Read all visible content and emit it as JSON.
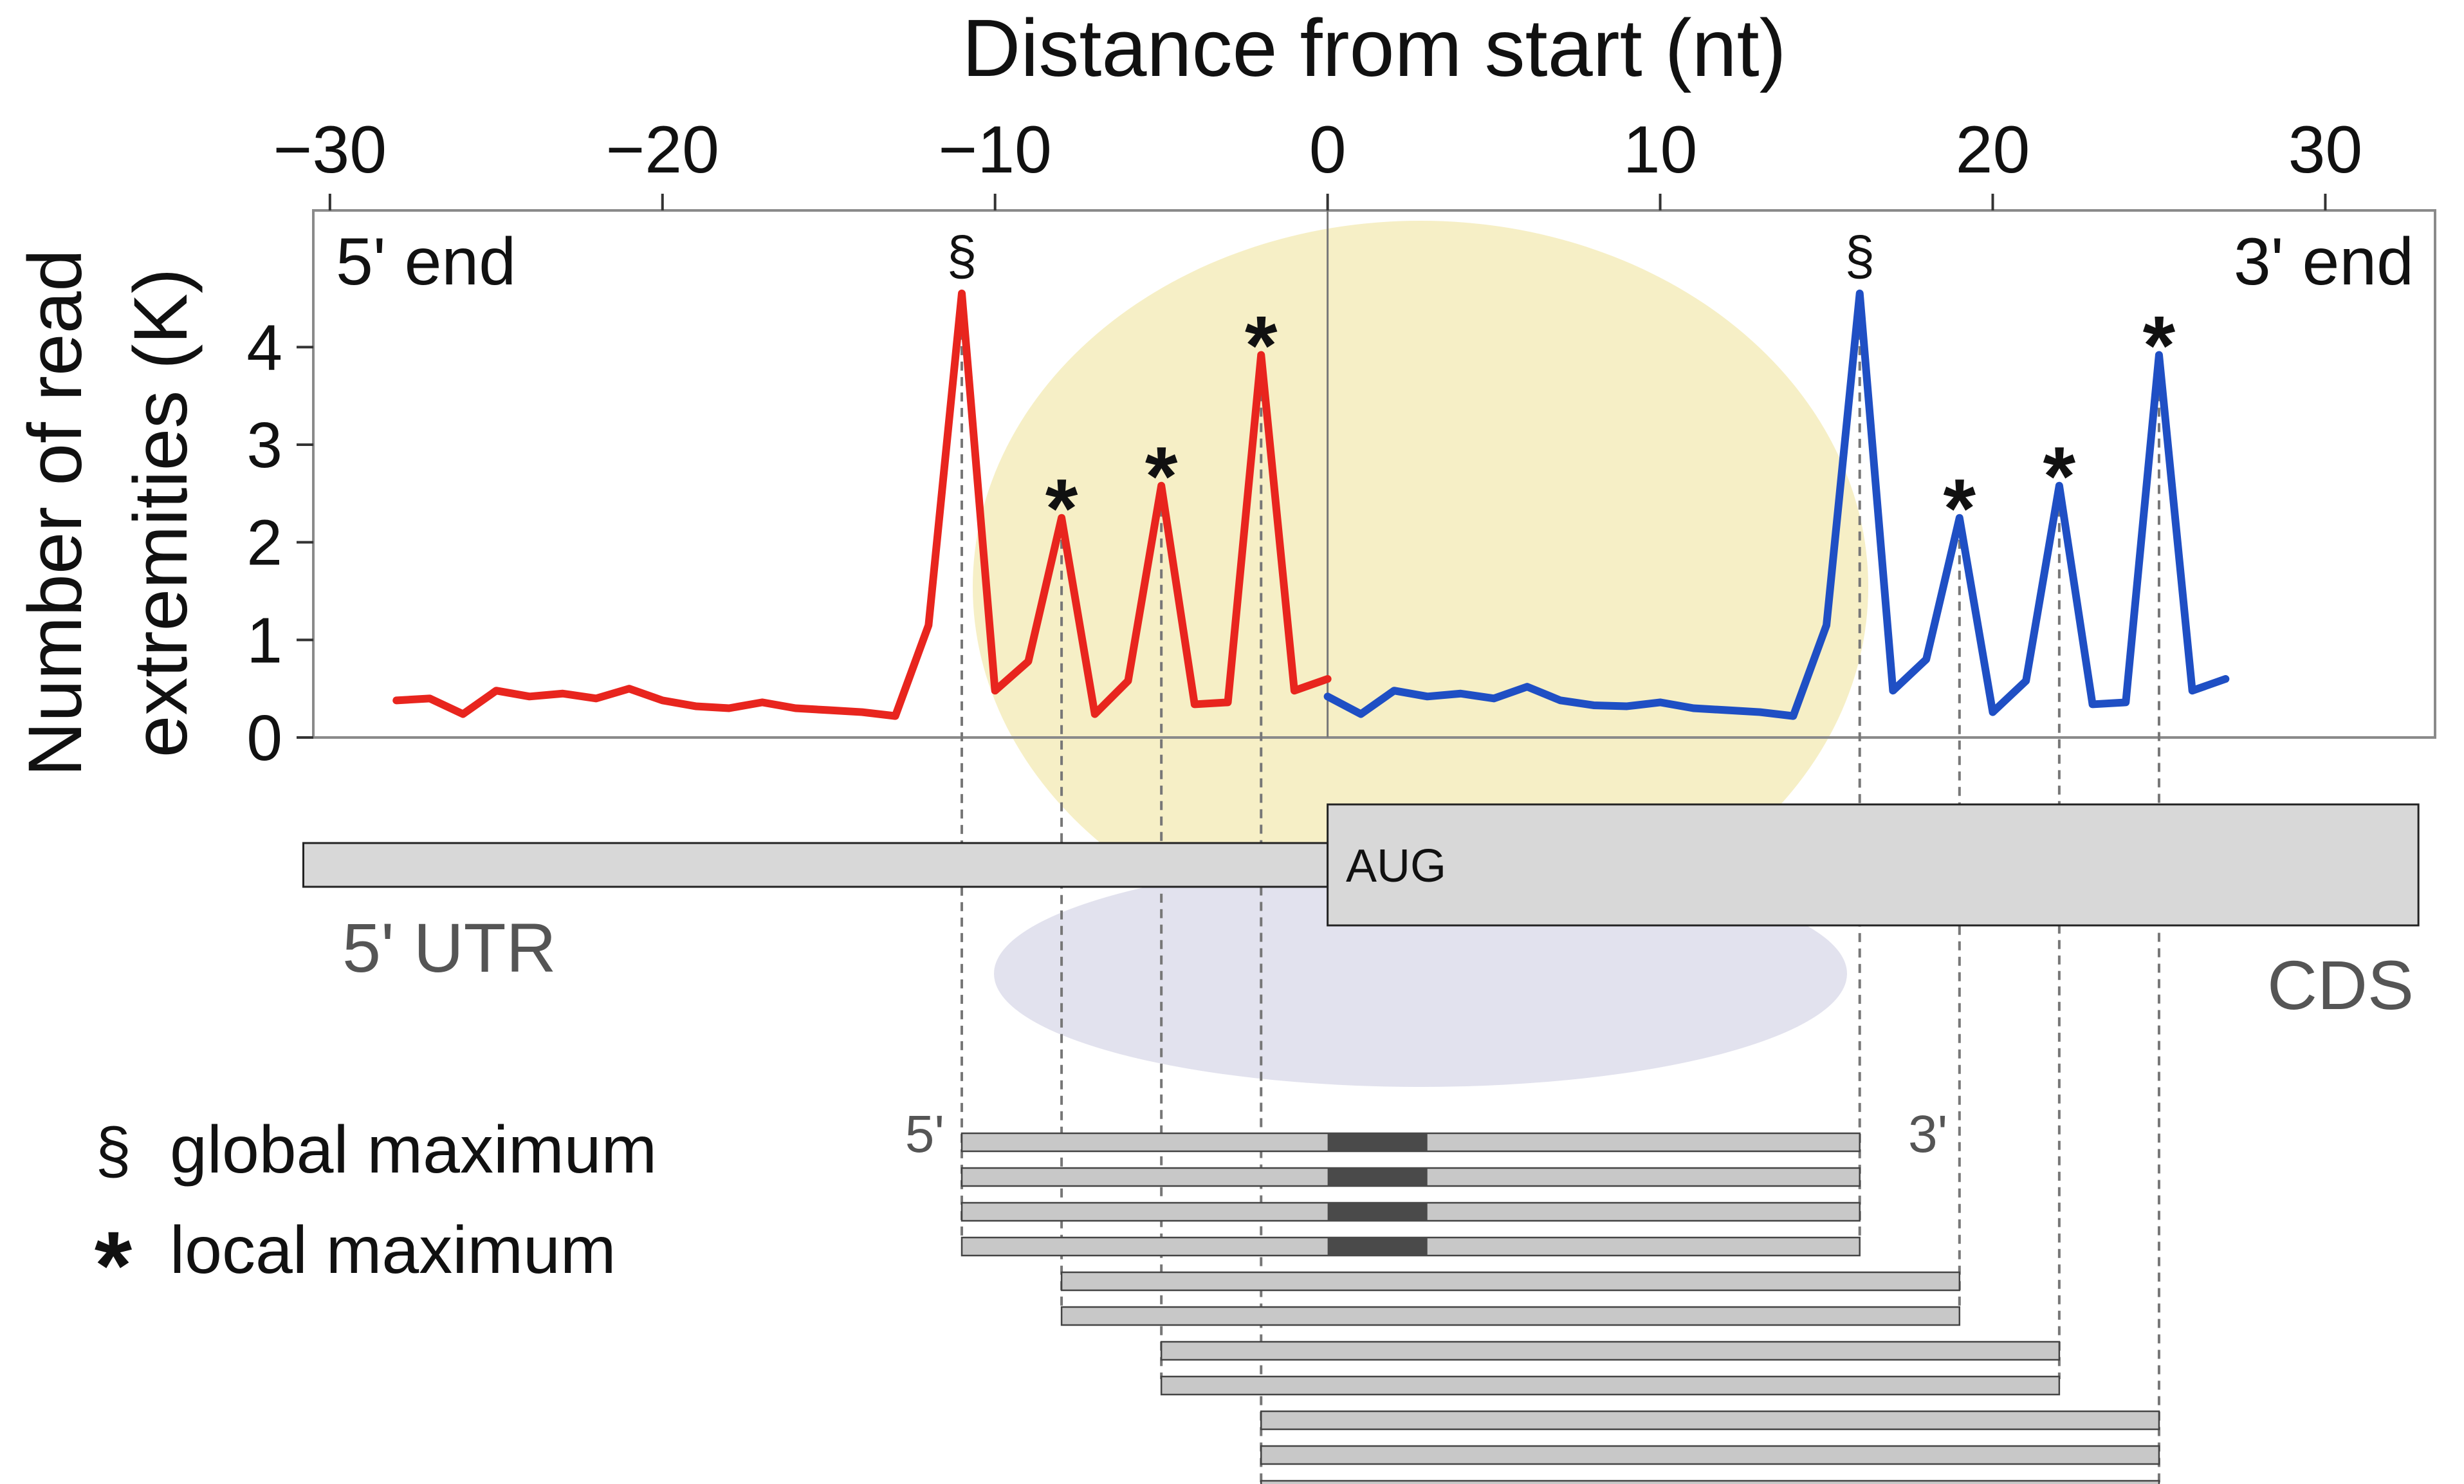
{
  "chart_data": {
    "type": "line",
    "title": "",
    "xlabel": "Distance from start (nt)",
    "ylabel_line1": "Number of read",
    "ylabel_line2": "extremities (K)",
    "xlim": [
      -30.5,
      33.3
    ],
    "ylim": [
      0,
      5.4
    ],
    "x_ticks": [
      -30,
      -20,
      -10,
      0,
      10,
      20,
      30
    ],
    "x_tick_labels": [
      "−30",
      "−20",
      "−10",
      "0",
      "10",
      "20",
      "30"
    ],
    "y_ticks": [
      0,
      1,
      2,
      3,
      4
    ],
    "y_tick_labels": [
      "0",
      "1",
      "2",
      "3",
      "4"
    ],
    "corner_labels": {
      "left": "5' end",
      "right": "3' end"
    },
    "series": [
      {
        "name": "5' end",
        "color": "#e8251e",
        "x": [
          -28,
          -27,
          -26,
          -25,
          -24,
          -23,
          -22,
          -21,
          -20,
          -19,
          -18,
          -17,
          -16,
          -15,
          -14,
          -13,
          -12,
          -11,
          -10,
          -9,
          -8,
          -7,
          -6,
          -5,
          -4,
          -3,
          -2,
          -1,
          0
        ],
        "y": [
          0.38,
          0.4,
          0.24,
          0.48,
          0.42,
          0.45,
          0.4,
          0.5,
          0.38,
          0.32,
          0.3,
          0.36,
          0.3,
          0.28,
          0.26,
          0.22,
          1.15,
          4.55,
          0.48,
          0.78,
          2.25,
          0.24,
          0.58,
          2.58,
          0.34,
          0.36,
          3.92,
          0.48,
          0.6
        ]
      },
      {
        "name": "3' end",
        "color": "#1f4fc4",
        "x": [
          0,
          1,
          2,
          3,
          4,
          5,
          6,
          7,
          8,
          9,
          10,
          11,
          12,
          13,
          14,
          15,
          16,
          17,
          18,
          19,
          20,
          21,
          22,
          23,
          24,
          25,
          26,
          27
        ],
        "y": [
          0.42,
          0.24,
          0.48,
          0.42,
          0.45,
          0.4,
          0.52,
          0.38,
          0.33,
          0.32,
          0.36,
          0.3,
          0.28,
          0.26,
          0.22,
          1.15,
          4.55,
          0.48,
          0.8,
          2.25,
          0.26,
          0.58,
          2.58,
          0.34,
          0.36,
          3.92,
          0.48,
          0.6
        ]
      }
    ],
    "peaks": [
      {
        "x": -11,
        "y": 4.55,
        "symbol": "§"
      },
      {
        "x": -8,
        "y": 2.25,
        "symbol": "*"
      },
      {
        "x": -5,
        "y": 2.58,
        "symbol": "*"
      },
      {
        "x": -2,
        "y": 3.92,
        "symbol": "*"
      },
      {
        "x": 16,
        "y": 4.55,
        "symbol": "§"
      },
      {
        "x": 19,
        "y": 2.25,
        "symbol": "*"
      },
      {
        "x": 22,
        "y": 2.58,
        "symbol": "*"
      },
      {
        "x": 25,
        "y": 3.92,
        "symbol": "*"
      }
    ],
    "gene": {
      "utr": {
        "label": "5' UTR",
        "from": -30.8,
        "to": 0
      },
      "cds": {
        "label": "CDS",
        "from": 0,
        "to": 32.8
      },
      "start_codon": "AUG"
    },
    "reads": {
      "end_labels": {
        "five": "5'",
        "three": "3'"
      },
      "items": [
        {
          "start": -11,
          "end": 16,
          "aug": true
        },
        {
          "start": -11,
          "end": 16,
          "aug": true
        },
        {
          "start": -11,
          "end": 16,
          "aug": true
        },
        {
          "start": -11,
          "end": 16,
          "aug": true
        },
        {
          "start": -8,
          "end": 19,
          "aug": false
        },
        {
          "start": -8,
          "end": 19,
          "aug": false
        },
        {
          "start": -5,
          "end": 22,
          "aug": false
        },
        {
          "start": -5,
          "end": 22,
          "aug": false
        },
        {
          "start": -2,
          "end": 25,
          "aug": false
        },
        {
          "start": -2,
          "end": 25,
          "aug": false
        },
        {
          "start": -2,
          "end": 25,
          "aug": false
        }
      ]
    },
    "legend": {
      "placement": "bottom-left",
      "items": [
        {
          "symbol": "§",
          "label": "global maximum"
        },
        {
          "symbol": "*",
          "label": "local maximum"
        }
      ]
    },
    "colors": {
      "utr_series": "#e8251e",
      "cds_series": "#1f4fc4",
      "ribosome_large": "#f6efc6",
      "ribosome_small": "#e2e2ee",
      "gene_box": "#d8d8d8",
      "read_bar": "#c8c8c8",
      "aug_block": "#4a4a4a"
    }
  }
}
